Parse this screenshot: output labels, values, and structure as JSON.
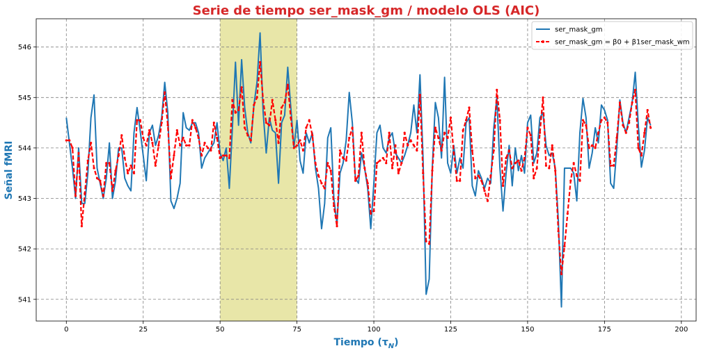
{
  "chart_data": {
    "type": "line",
    "title": "Serie de tiempo ser_mask_gm / modelo OLS (AIC)",
    "xlabel": "Tiempo (τN)",
    "ylabel": "Señal fMRI",
    "xlim": [
      -9.8,
      204.8
    ],
    "ylim": [
      540.57,
      546.56
    ],
    "x_ticks": [
      0,
      25,
      50,
      75,
      100,
      125,
      150,
      175,
      200
    ],
    "x_tick_labels": [
      "0",
      "25",
      "50",
      "75",
      "100",
      "125",
      "150",
      "175",
      "200"
    ],
    "y_ticks": [
      541,
      542,
      543,
      544,
      545,
      546
    ],
    "y_tick_labels": [
      "541",
      "542",
      "543",
      "544",
      "545",
      "546"
    ],
    "grid": true,
    "legend_position": "top-right",
    "highlight_span": {
      "x0": 50,
      "x1": 75,
      "color": "#e8e6a8"
    },
    "series": [
      {
        "name": "ser_mask_gm",
        "color": "#1f77b4",
        "style": "solid",
        "x_start": 0,
        "values": [
          544.6,
          544.1,
          543.6,
          543.0,
          544.0,
          542.9,
          542.9,
          543.5,
          544.6,
          545.05,
          543.6,
          543.3,
          543.0,
          543.4,
          544.1,
          543.0,
          543.35,
          544.0,
          544.0,
          543.4,
          543.25,
          543.15,
          544.3,
          544.8,
          544.35,
          543.85,
          543.35,
          544.3,
          544.45,
          544.05,
          544.25,
          544.6,
          545.3,
          544.7,
          542.95,
          542.8,
          543.0,
          543.3,
          544.7,
          544.4,
          544.35,
          544.5,
          544.5,
          544.3,
          543.6,
          543.8,
          543.9,
          544.0,
          544.1,
          544.5,
          543.9,
          543.75,
          544.0,
          543.2,
          544.4,
          545.7,
          544.45,
          545.75,
          544.8,
          544.3,
          544.1,
          544.85,
          545.3,
          546.28,
          544.7,
          543.9,
          544.6,
          544.35,
          544.3,
          543.3,
          544.5,
          544.65,
          545.6,
          544.8,
          544.0,
          544.55,
          543.75,
          543.5,
          544.3,
          544.1,
          544.3,
          543.6,
          543.2,
          542.4,
          542.9,
          544.2,
          544.4,
          543.0,
          542.5,
          543.5,
          543.7,
          544.15,
          545.1,
          544.5,
          543.4,
          543.3,
          543.9,
          543.6,
          543.2,
          542.4,
          543.3,
          544.3,
          544.45,
          544.0,
          543.9,
          544.2,
          544.3,
          543.9,
          543.8,
          543.7,
          543.85,
          544.05,
          544.3,
          544.85,
          544.3,
          545.45,
          543.8,
          541.1,
          541.4,
          543.6,
          544.9,
          544.6,
          543.8,
          545.4,
          543.7,
          543.5,
          544.05,
          543.5,
          543.8,
          543.6,
          544.5,
          544.6,
          543.25,
          543.05,
          543.55,
          543.4,
          543.2,
          543.4,
          543.3,
          544.4,
          545.0,
          543.6,
          542.75,
          543.5,
          544.05,
          543.25,
          544.0,
          543.55,
          543.85,
          543.5,
          544.5,
          544.65,
          543.7,
          543.9,
          544.6,
          544.7,
          544.05,
          543.85,
          543.9,
          543.6,
          542.55,
          540.85,
          543.6,
          543.6,
          543.6,
          543.5,
          542.95,
          544.3,
          544.98,
          544.6,
          543.6,
          543.9,
          544.4,
          544.1,
          544.85,
          544.75,
          544.55,
          543.3,
          543.2,
          544.0,
          544.95,
          544.5,
          544.3,
          544.6,
          544.9,
          545.5,
          544.45,
          543.62,
          543.95,
          544.6,
          544.45
        ]
      },
      {
        "name": "ser_mask_gm = β0 + β1ser_mask_wm",
        "color": "#ff0000",
        "style": "dashed",
        "x_start": 0,
        "values": [
          544.15,
          544.15,
          544.0,
          543.05,
          543.9,
          542.45,
          543.1,
          543.75,
          544.1,
          543.6,
          543.4,
          543.35,
          543.05,
          543.7,
          543.7,
          543.15,
          543.55,
          543.85,
          544.25,
          543.8,
          543.5,
          543.65,
          543.5,
          544.55,
          544.55,
          544.2,
          544.05,
          544.35,
          544.1,
          543.65,
          544.05,
          544.5,
          545.1,
          544.45,
          543.4,
          543.85,
          544.35,
          544.05,
          544.2,
          544.05,
          544.05,
          544.55,
          544.4,
          544.2,
          543.85,
          544.1,
          544.0,
          543.95,
          544.5,
          544.2,
          543.8,
          543.85,
          543.85,
          543.8,
          544.95,
          544.7,
          544.75,
          545.2,
          544.4,
          544.25,
          544.15,
          544.85,
          545.0,
          545.7,
          544.95,
          544.5,
          544.45,
          544.95,
          544.55,
          544.1,
          544.8,
          544.9,
          545.25,
          544.6,
          544.0,
          544.05,
          544.15,
          543.95,
          544.4,
          544.55,
          544.25,
          543.7,
          543.45,
          543.3,
          543.2,
          543.7,
          543.55,
          542.85,
          542.45,
          543.95,
          543.8,
          543.75,
          544.2,
          544.4,
          543.35,
          543.45,
          544.3,
          543.6,
          543.3,
          542.7,
          542.75,
          543.7,
          543.75,
          543.8,
          543.7,
          544.3,
          543.6,
          544.05,
          543.5,
          543.7,
          544.3,
          544.05,
          544.15,
          544.05,
          543.95,
          545.05,
          543.5,
          542.15,
          542.1,
          543.55,
          544.4,
          544.2,
          543.95,
          544.3,
          544.2,
          544.6,
          543.9,
          543.35,
          543.35,
          544.35,
          544.55,
          544.8,
          543.95,
          543.4,
          543.45,
          543.35,
          543.15,
          542.95,
          543.45,
          543.95,
          545.15,
          544.55,
          543.25,
          543.8,
          543.95,
          543.6,
          543.7,
          543.75,
          543.55,
          543.8,
          544.4,
          544.25,
          543.4,
          543.6,
          544.3,
          545.0,
          543.65,
          543.6,
          544.05,
          543.55,
          542.35,
          541.5,
          542.05,
          542.7,
          543.35,
          543.7,
          543.45,
          543.35,
          544.55,
          544.45,
          544.0,
          544.05,
          544.0,
          544.3,
          544.55,
          544.6,
          544.5,
          543.65,
          543.65,
          544.2,
          544.9,
          544.45,
          544.3,
          544.5,
          544.9,
          545.15,
          544.0,
          543.85,
          544.3,
          544.75,
          544.4
        ]
      }
    ]
  }
}
